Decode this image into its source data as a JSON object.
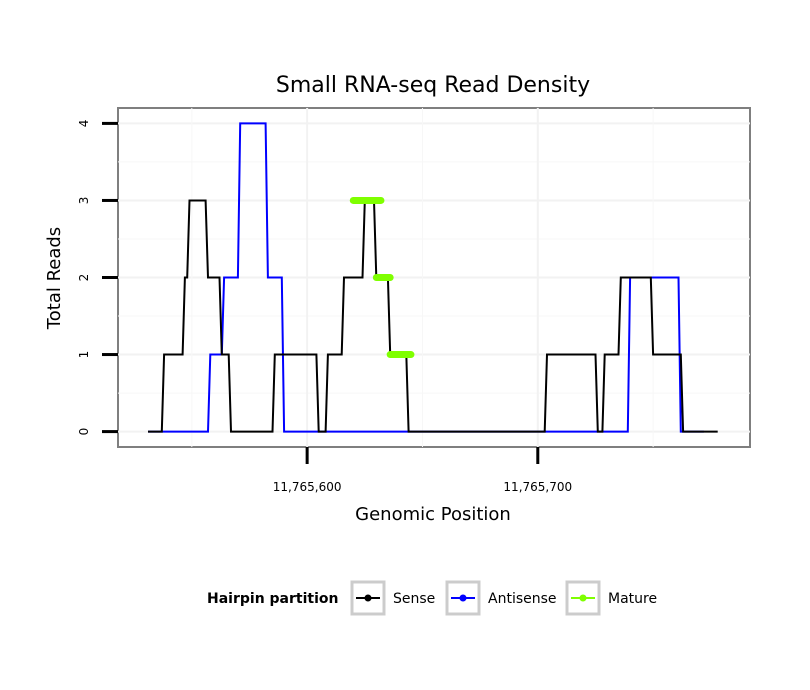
{
  "chart_data": {
    "type": "line",
    "title": "Small RNA-seq Read Density",
    "xlabel": "Genomic Position",
    "ylabel": "Total Reads",
    "xlim": [
      11765518,
      11765792
    ],
    "ylim": [
      -0.2,
      4.2
    ],
    "x_ticks": [
      {
        "value": 11765600,
        "label": "11,765,600"
      },
      {
        "value": 11765700,
        "label": "11,765,700"
      }
    ],
    "y_ticks": [
      {
        "value": 0,
        "label": "0"
      },
      {
        "value": 1,
        "label": "1"
      },
      {
        "value": 2,
        "label": "2"
      },
      {
        "value": 3,
        "label": "3"
      },
      {
        "value": 4,
        "label": "4"
      }
    ],
    "grid": true,
    "legend_position": "bottom",
    "legend_title": "Hairpin partition",
    "series": [
      {
        "name": "Antisense",
        "color": "#0000ff",
        "width": 2,
        "x": [
          11765531,
          11765557,
          11765558,
          11765563,
          11765564,
          11765570,
          11765571,
          11765582,
          11765583,
          11765589,
          11765590,
          11765739,
          11765740,
          11765761,
          11765762,
          11765772
        ],
        "y": [
          0,
          0,
          1,
          1,
          2,
          2,
          4,
          4,
          2,
          2,
          0,
          0,
          2,
          2,
          0,
          0
        ]
      },
      {
        "name": "Sense",
        "color": "#000000",
        "width": 2,
        "x": [
          11765531,
          11765537,
          11765538,
          11765546,
          11765547,
          11765548,
          11765549,
          11765556,
          11765557,
          11765562,
          11765563,
          11765566,
          11765567,
          11765585,
          11765586,
          11765604,
          11765605,
          11765608,
          11765609,
          11765615,
          11765616,
          11765624,
          11765625,
          11765629,
          11765630,
          11765635,
          11765636,
          11765643,
          11765644,
          11765703,
          11765704,
          11765725,
          11765726,
          11765728,
          11765729,
          11765735,
          11765736,
          11765749,
          11765750,
          11765762,
          11765763,
          11765765,
          11765766,
          11765778
        ],
        "y": [
          0,
          0,
          1,
          1,
          2,
          2,
          3,
          3,
          2,
          2,
          1,
          1,
          0,
          0,
          1,
          1,
          0,
          0,
          1,
          1,
          2,
          2,
          3,
          3,
          2,
          2,
          1,
          1,
          0,
          0,
          1,
          1,
          0,
          0,
          1,
          1,
          2,
          2,
          1,
          1,
          0,
          0,
          0,
          0
        ]
      },
      {
        "name": "Mature",
        "color": "#7fff00",
        "width": 7,
        "segments": [
          {
            "x": [
              11765620,
              11765632
            ],
            "y": [
              3,
              3
            ]
          },
          {
            "x": [
              11765630,
              11765636
            ],
            "y": [
              2,
              2
            ]
          },
          {
            "x": [
              11765636,
              11765645
            ],
            "y": [
              1,
              1
            ]
          }
        ]
      }
    ],
    "legend": [
      {
        "label": "Sense",
        "color": "#000000"
      },
      {
        "label": "Antisense",
        "color": "#0000ff"
      },
      {
        "label": "Mature",
        "color": "#7fff00"
      }
    ]
  }
}
